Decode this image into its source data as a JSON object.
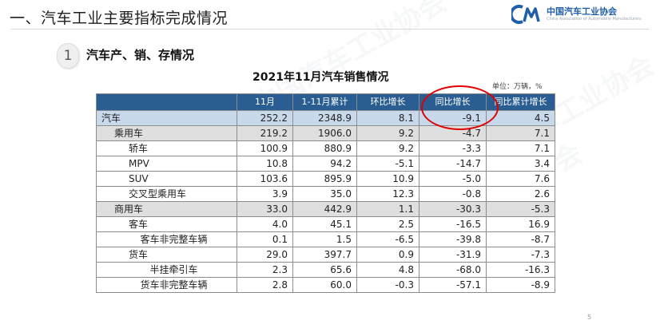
{
  "header": {
    "title": "一、汽车工业主要指标完成情况",
    "logo_cn": "中国汽车工业协会",
    "logo_en": "China Association of Automobile Manufacturers",
    "accent": "#1f5ea8"
  },
  "section": {
    "number": "1",
    "label": "汽车产、销、存情况"
  },
  "table": {
    "title": "2021年11月汽车销售情况",
    "unit": "单位：万辆，%",
    "header_color": "#2a5d92",
    "highlight_color": "#e00000",
    "columns": [
      "",
      "11月",
      "1-11月累计",
      "环比增长",
      "同比增长",
      "同比累计增长"
    ],
    "rows": [
      {
        "name": "汽车",
        "nov": "252.2",
        "ytd": "2348.9",
        "mom": "8.1",
        "yoy": "-9.1",
        "ytd_yoy": "4.5"
      },
      {
        "name": "乘用车",
        "nov": "219.2",
        "ytd": "1906.0",
        "mom": "9.2",
        "yoy": "-4.7",
        "ytd_yoy": "7.1"
      },
      {
        "name": "轿车",
        "nov": "100.9",
        "ytd": "880.9",
        "mom": "9.2",
        "yoy": "-3.3",
        "ytd_yoy": "7.1"
      },
      {
        "name": "MPV",
        "nov": "10.8",
        "ytd": "94.2",
        "mom": "-5.1",
        "yoy": "-14.7",
        "ytd_yoy": "3.4"
      },
      {
        "name": "SUV",
        "nov": "103.6",
        "ytd": "895.9",
        "mom": "10.9",
        "yoy": "-5.0",
        "ytd_yoy": "7.6"
      },
      {
        "name": "交叉型乘用车",
        "nov": "3.9",
        "ytd": "35.0",
        "mom": "12.3",
        "yoy": "-0.8",
        "ytd_yoy": "2.6"
      },
      {
        "name": "商用车",
        "nov": "33.0",
        "ytd": "442.9",
        "mom": "1.1",
        "yoy": "-30.3",
        "ytd_yoy": "-5.3"
      },
      {
        "name": "客车",
        "nov": "4.0",
        "ytd": "45.1",
        "mom": "2.5",
        "yoy": "-16.5",
        "ytd_yoy": "16.9"
      },
      {
        "name": "客车非完整车辆",
        "nov": "0.1",
        "ytd": "1.5",
        "mom": "-6.5",
        "yoy": "-39.8",
        "ytd_yoy": "-8.7"
      },
      {
        "name": "货车",
        "nov": "29.0",
        "ytd": "397.7",
        "mom": "0.9",
        "yoy": "-31.9",
        "ytd_yoy": "-7.3"
      },
      {
        "name": "半挂牵引车",
        "nov": "2.3",
        "ytd": "65.6",
        "mom": "4.8",
        "yoy": "-68.0",
        "ytd_yoy": "-16.3"
      },
      {
        "name": "货车非完整车辆",
        "nov": "2.8",
        "ytd": "60.0",
        "mom": "-0.3",
        "yoy": "-57.1",
        "ytd_yoy": "-8.9"
      }
    ]
  },
  "footer": {
    "page_number": "5"
  }
}
